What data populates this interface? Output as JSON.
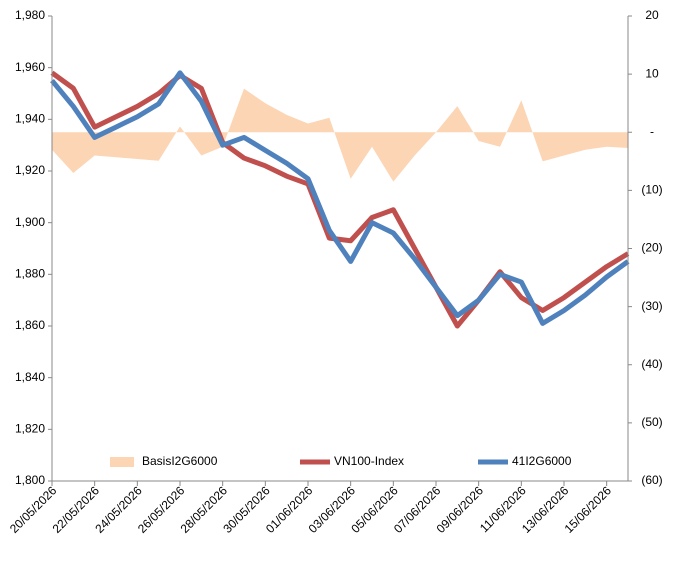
{
  "chart_data": {
    "type": "line",
    "categories": [
      "20/05/2026",
      null,
      "22/05/2026",
      null,
      "24/05/2026",
      null,
      "26/05/2026",
      null,
      "28/05/2026",
      null,
      "30/05/2026",
      null,
      "01/06/2026",
      null,
      "03/06/2026",
      null,
      "05/06/2026",
      null,
      "07/06/2026",
      null,
      "09/06/2026",
      null,
      "11/06/2026",
      null,
      "13/06/2026",
      null,
      "15/06/2026",
      null
    ],
    "series": [
      {
        "name": "BasisI2G6000",
        "type": "area",
        "axis": "y2",
        "color": "#fcd5b4",
        "values": [
          -3,
          -7,
          -4,
          -4.3,
          -4.6,
          -4.9,
          1,
          -4,
          -2.5,
          7.5,
          5,
          3,
          1.5,
          2.5,
          -8,
          -2.5,
          -8.5,
          -4,
          0,
          4.5,
          -1.5,
          -2.5,
          5.5,
          -5,
          -4,
          -3,
          -2.5,
          -2.7
        ]
      },
      {
        "name": "VN100-Index",
        "type": "line",
        "color": "#c0504d",
        "values": [
          1958,
          1952,
          1937,
          1941,
          1945,
          1950,
          1957,
          1952,
          1931,
          1925,
          1922,
          1918,
          1915,
          1894,
          1893,
          1902,
          1905,
          1890,
          1875,
          1860,
          1870,
          1881,
          1871,
          1866,
          1871,
          1877,
          1883,
          1888
        ]
      },
      {
        "name": "41I2G6000",
        "type": "line",
        "color": "#4f81bd",
        "values": [
          1955,
          1945,
          1933,
          1937,
          1941,
          1946,
          1958,
          1947,
          1930,
          1933,
          1928,
          1923,
          1917,
          1897,
          1885,
          1900,
          1896,
          1886,
          1875,
          1864,
          1870,
          1880,
          1877,
          1861,
          1866,
          1872,
          1879,
          1885
        ]
      }
    ],
    "ylim": [
      1800,
      1980
    ],
    "yticks": [
      {
        "value": 1800,
        "label": "1,800"
      },
      {
        "value": 1820,
        "label": "1,820"
      },
      {
        "value": 1840,
        "label": "1,840"
      },
      {
        "value": 1860,
        "label": "1,860"
      },
      {
        "value": 1880,
        "label": "1,880"
      },
      {
        "value": 1900,
        "label": "1,900"
      },
      {
        "value": 1920,
        "label": "1,920"
      },
      {
        "value": 1940,
        "label": "1,940"
      },
      {
        "value": 1960,
        "label": "1,960"
      },
      {
        "value": 1980,
        "label": "1,980"
      }
    ],
    "y2lim": [
      -60,
      20
    ],
    "y2ticks": [
      {
        "value": -60,
        "label": "(60)"
      },
      {
        "value": -50,
        "label": "(50)"
      },
      {
        "value": -40,
        "label": "(40)"
      },
      {
        "value": -30,
        "label": "(30)"
      },
      {
        "value": -20,
        "label": "(20)"
      },
      {
        "value": -10,
        "label": "(10)"
      },
      {
        "value": 0,
        "label": "-"
      },
      10,
      20
    ],
    "legend": "bottom",
    "grid": false
  }
}
